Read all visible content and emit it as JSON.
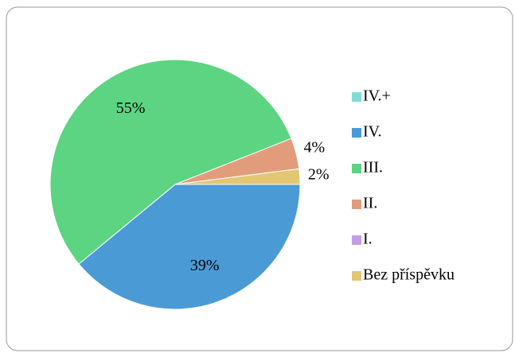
{
  "chart_data": {
    "type": "pie",
    "categories": [
      "IV.+",
      "IV.",
      "III.",
      "II.",
      "I.",
      "Bez příspěvku"
    ],
    "values": [
      0,
      39,
      55,
      4,
      0,
      2
    ],
    "value_labels": [
      null,
      "39%",
      "55%",
      "4%",
      null,
      "2%"
    ],
    "colors": [
      "#7fdcd6",
      "#4a9ad6",
      "#5cd482",
      "#e29c7c",
      "#c49be8",
      "#e3c672"
    ],
    "legend": "right"
  }
}
